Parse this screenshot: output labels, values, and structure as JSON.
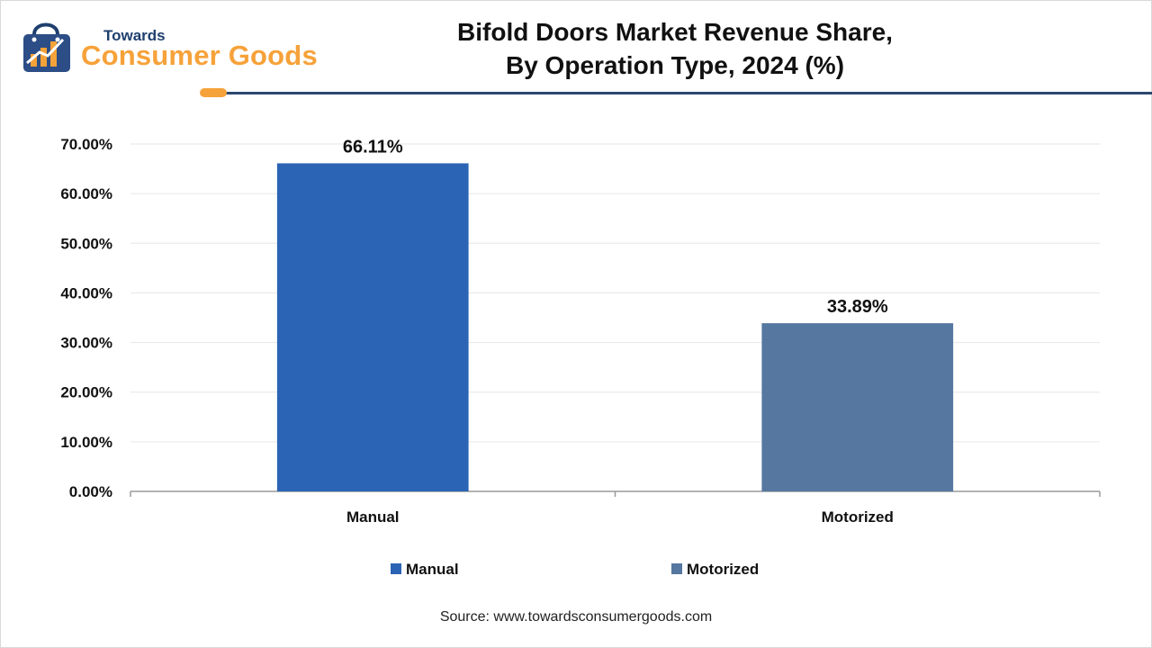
{
  "brand": {
    "line1": "Towards",
    "line2": "Consumer Goods",
    "colors": {
      "primary": "#1f3f6e",
      "accent": "#f6a23a"
    }
  },
  "chart_data": {
    "type": "bar",
    "title_line1": "Bifold Doors Market Revenue Share,",
    "title_line2": "By Operation Type, 2024 (%)",
    "categories": [
      "Manual",
      "Motorized"
    ],
    "values": [
      66.11,
      33.89
    ],
    "value_labels": [
      "66.11%",
      "33.89%"
    ],
    "colors": [
      "#2b64b4",
      "#5577a0"
    ],
    "ylim": [
      0,
      70
    ],
    "yticks": [
      0,
      10,
      20,
      30,
      40,
      50,
      60,
      70
    ],
    "ytick_labels": [
      "0.00%",
      "10.00%",
      "20.00%",
      "30.00%",
      "40.00%",
      "50.00%",
      "60.00%",
      "70.00%"
    ],
    "grid": true,
    "legend": {
      "position": "bottom",
      "entries": [
        {
          "label": "Manual",
          "color": "#2b64b4"
        },
        {
          "label": "Motorized",
          "color": "#5577a0"
        }
      ]
    }
  },
  "source": "Source: www.towardsconsumergoods.com"
}
